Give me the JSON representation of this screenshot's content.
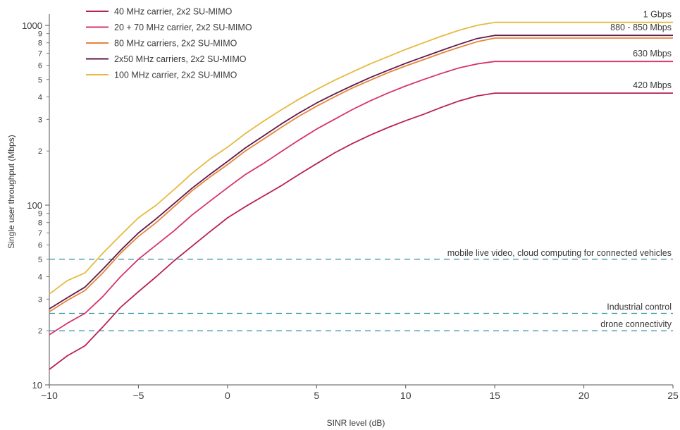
{
  "chart_data": {
    "type": "line",
    "xlabel": "SINR level (dB)",
    "ylabel": "Single user throughput (Mbps)",
    "y_scale": "log",
    "xlim": [
      -10,
      25
    ],
    "ylim": [
      10,
      1000
    ],
    "x_ticks": [
      -10,
      -5,
      0,
      5,
      10,
      15,
      20,
      25
    ],
    "x_tick_labels": [
      "−10",
      "−5",
      "0",
      "5",
      "10",
      "15",
      "20",
      "25"
    ],
    "y_major_ticks": [
      10,
      100,
      1000
    ],
    "y_major_tick_labels": [
      "10",
      "100",
      "1000"
    ],
    "y_minor_ticks": [
      20,
      30,
      40,
      50,
      60,
      70,
      80,
      90,
      200,
      300,
      400,
      500,
      600,
      700,
      800,
      900
    ],
    "y_minor_tick_labels": [
      "2",
      "3",
      "4",
      "5",
      "6",
      "7",
      "8",
      "9",
      "2",
      "3",
      "4",
      "5",
      "6",
      "7",
      "8",
      "9"
    ],
    "grid": false,
    "legend_position": "top-left",
    "series": [
      {
        "name": "40 MHz carrier, 2x2 SU-MIMO",
        "color": "#b8224f",
        "end_label": "420 Mbps",
        "x": [
          -10,
          -9,
          -8,
          -7,
          -6,
          -5,
          -4,
          -3,
          -2,
          -1,
          0,
          1,
          2,
          3,
          4,
          5,
          6,
          7,
          8,
          9,
          10,
          11,
          12,
          13,
          14,
          15,
          20,
          25
        ],
        "y": [
          12.2,
          14.5,
          16.5,
          21,
          27,
          33,
          40,
          49,
          59,
          71,
          85,
          98,
          112,
          128,
          148,
          170,
          195,
          220,
          245,
          270,
          295,
          320,
          350,
          380,
          405,
          420,
          420,
          420
        ]
      },
      {
        "name": "20 + 70 MHz carrier, 2x2 SU-MIMO",
        "color": "#d6336c",
        "end_label": "630 Mbps",
        "x": [
          -10,
          -9,
          -8,
          -7,
          -6,
          -5,
          -4,
          -3,
          -2,
          -1,
          0,
          1,
          2,
          3,
          4,
          5,
          6,
          7,
          8,
          9,
          10,
          11,
          12,
          13,
          14,
          15,
          20,
          25
        ],
        "y": [
          19,
          22,
          25,
          31,
          40,
          50,
          60,
          72,
          88,
          105,
          125,
          148,
          170,
          198,
          230,
          265,
          300,
          340,
          380,
          420,
          460,
          500,
          540,
          580,
          610,
          630,
          630,
          630
        ]
      },
      {
        "name": "80 MHz carriers, 2x2 SU-MIMO",
        "color": "#e8833a",
        "end_label": "850 Mbps",
        "x": [
          -10,
          -9,
          -8,
          -7,
          -6,
          -5,
          -4,
          -3,
          -2,
          -1,
          0,
          1,
          2,
          3,
          4,
          5,
          6,
          7,
          8,
          9,
          10,
          11,
          12,
          13,
          14,
          15,
          20,
          25
        ],
        "y": [
          25.5,
          29.5,
          33.5,
          42,
          54,
          67,
          80,
          98,
          120,
          143,
          168,
          200,
          232,
          270,
          312,
          355,
          400,
          448,
          495,
          545,
          595,
          645,
          700,
          755,
          810,
          850,
          850,
          850
        ]
      },
      {
        "name": "2x50 MHz carriers, 2x2 SU-MIMO",
        "color": "#5e1a4a",
        "end_label": "880 Mbps",
        "x": [
          -10,
          -9,
          -8,
          -7,
          -6,
          -5,
          -4,
          -3,
          -2,
          -1,
          0,
          1,
          2,
          3,
          4,
          5,
          6,
          7,
          8,
          9,
          10,
          11,
          12,
          13,
          14,
          15,
          20,
          25
        ],
        "y": [
          26.5,
          30.5,
          35,
          44,
          56,
          70,
          84,
          102,
          124,
          148,
          175,
          208,
          242,
          282,
          325,
          370,
          415,
          462,
          512,
          562,
          615,
          668,
          725,
          785,
          845,
          880,
          880,
          880
        ]
      },
      {
        "name": "100 MHz carrier, 2x2 SU-MIMO",
        "color": "#e6b93f",
        "end_label": "1 Gbps",
        "x": [
          -10,
          -9,
          -8,
          -7,
          -6,
          -5,
          -4,
          -3,
          -2,
          -1,
          0,
          1,
          2,
          3,
          4,
          5,
          6,
          7,
          8,
          9,
          10,
          11,
          12,
          13,
          14,
          15,
          20,
          25
        ],
        "y": [
          32,
          38,
          42,
          54,
          68,
          85,
          100,
          122,
          150,
          180,
          210,
          250,
          292,
          338,
          388,
          440,
          495,
          550,
          610,
          670,
          735,
          800,
          870,
          940,
          1000,
          1040,
          1040,
          1040
        ]
      }
    ],
    "end_label_group": "880 - 850 Mbps",
    "reference_lines": [
      {
        "y": 50,
        "label": "mobile live video, cloud computing for connected vehicles",
        "color": "#2e8fa8"
      },
      {
        "y": 25,
        "label": "Industrial control",
        "color": "#2e8fa8"
      },
      {
        "y": 20,
        "label": "drone connectivity",
        "color": "#2e8fa8"
      }
    ]
  }
}
